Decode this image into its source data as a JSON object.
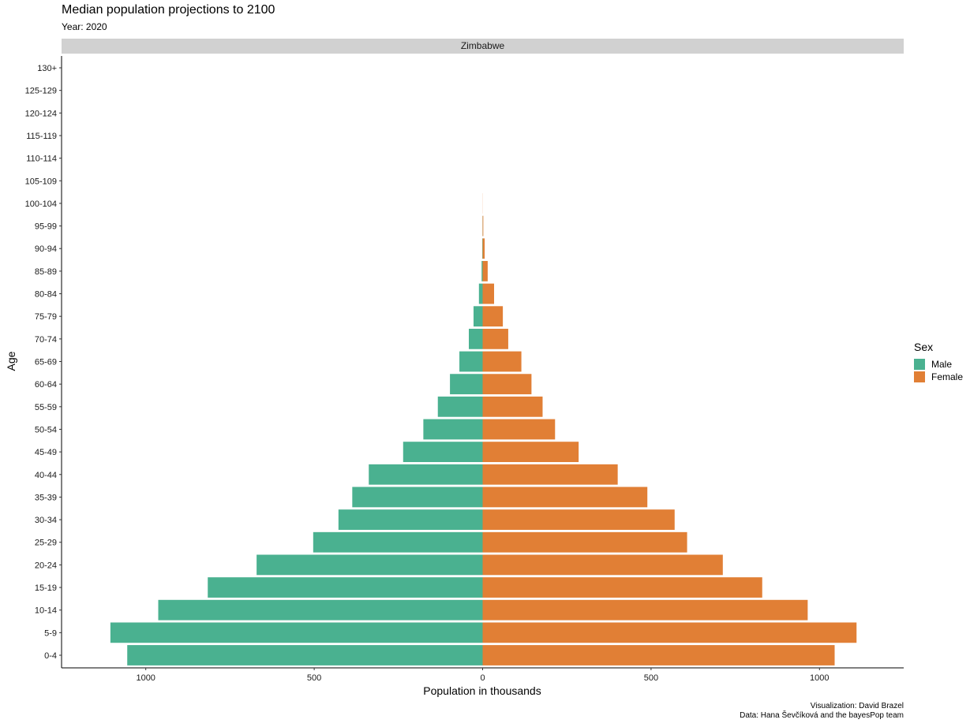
{
  "title": "Median population projections to 2100",
  "subtitle": "Year: 2020",
  "facet": "Zimbabwe",
  "caption": {
    "line1": "Visualization: David Brazel",
    "line2": "Data: Hana Ševčíková and the bayesPop team"
  },
  "legend": {
    "title": "Sex",
    "items": [
      {
        "label": "Male",
        "color": "#4ab190"
      },
      {
        "label": "Female",
        "color": "#e17f35"
      }
    ]
  },
  "chart_data": {
    "type": "bar",
    "orientation": "horizontal",
    "xlabel": "Population in thousands",
    "ylabel": "Age",
    "xlim": [
      -1250,
      1250
    ],
    "x_ticks": [
      -1000,
      -500,
      0,
      500,
      1000
    ],
    "x_tick_labels": [
      "1000",
      "500",
      "0",
      "500",
      "1000"
    ],
    "categories": [
      "0-4",
      "5-9",
      "10-14",
      "15-19",
      "20-24",
      "25-29",
      "30-34",
      "35-39",
      "40-44",
      "45-49",
      "50-54",
      "55-59",
      "60-64",
      "65-69",
      "70-74",
      "75-79",
      "80-84",
      "85-89",
      "90-94",
      "95-99",
      "100-104",
      "105-109",
      "110-114",
      "115-119",
      "120-124",
      "125-129",
      "130+"
    ],
    "series": [
      {
        "name": "Male",
        "color": "#4ab190",
        "values": [
          1055,
          1105,
          963,
          816,
          671,
          503,
          428,
          387,
          338,
          236,
          176,
          133,
          97,
          69,
          41,
          27,
          11,
          3,
          1,
          0.3,
          0,
          0,
          0,
          0,
          0,
          0,
          0
        ]
      },
      {
        "name": "Female",
        "color": "#e17f35",
        "values": [
          1045,
          1110,
          965,
          830,
          713,
          607,
          570,
          489,
          401,
          285,
          215,
          178,
          145,
          115,
          76,
          60,
          34,
          15,
          6,
          2,
          0.3,
          0,
          0,
          0,
          0,
          0,
          0
        ]
      }
    ],
    "grid": false,
    "legend_position": "right"
  }
}
